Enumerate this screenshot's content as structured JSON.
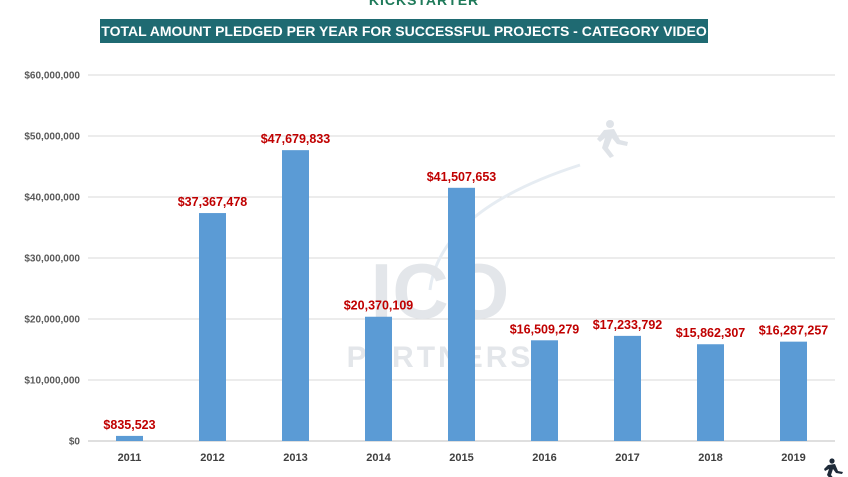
{
  "brand": "KICKSTARTER",
  "watermark": {
    "main": "ICO",
    "sub": "PARTNERS"
  },
  "chart_data": {
    "type": "bar",
    "title": "TOTAL AMOUNT PLEDGED PER YEAR FOR SUCCESSFUL PROJECTS - CATEGORY VIDEO GAMES",
    "xlabel": "",
    "ylabel": "",
    "categories": [
      "2011",
      "2012",
      "2013",
      "2014",
      "2015",
      "2016",
      "2017",
      "2018",
      "2019"
    ],
    "values": [
      835523,
      37367478,
      47679833,
      20370109,
      41507653,
      16509279,
      17233792,
      15862307,
      16287257
    ],
    "data_labels": [
      "$835,523",
      "$37,367,478",
      "$47,679,833",
      "$20,370,109",
      "$41,507,653",
      "$16,509,279",
      "$17,233,792",
      "$15,862,307",
      "$16,287,257"
    ],
    "yticks": [
      0,
      10000000,
      20000000,
      30000000,
      40000000,
      50000000,
      60000000
    ],
    "ytick_labels": [
      "$0",
      "$10,000,000",
      "$20,000,000",
      "$30,000,000",
      "$40,000,000",
      "$50,000,000",
      "$60,000,000"
    ],
    "ylim": [
      0,
      60000000
    ],
    "grid": true,
    "legend": "none",
    "colors": {
      "bar": "#5b9bd5",
      "data_label": "#c00000",
      "title_bg": "#1f6a72",
      "title_text": "#ffffff"
    }
  }
}
